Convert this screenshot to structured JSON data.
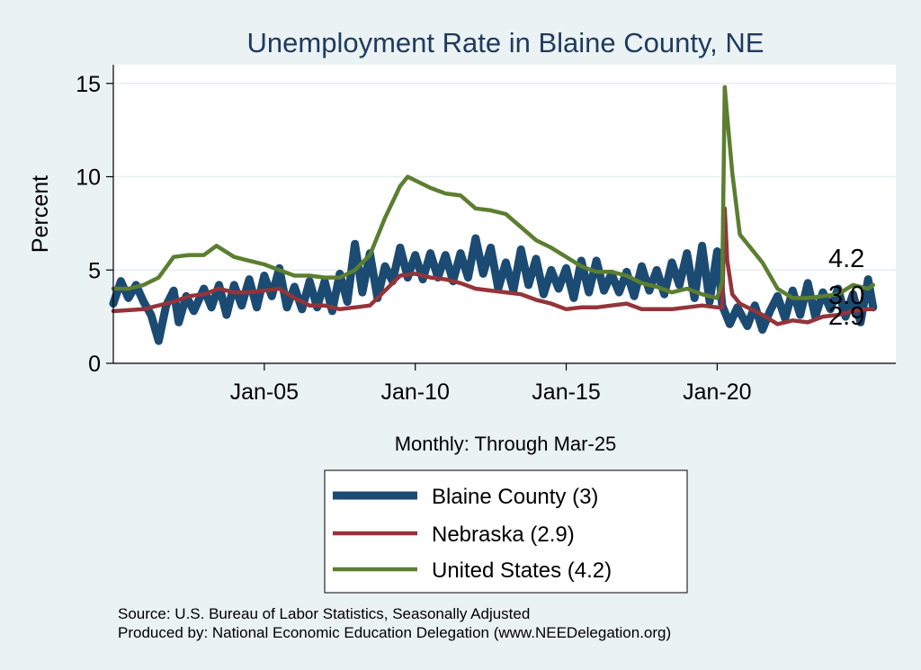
{
  "chart_data": {
    "type": "line",
    "title": "Unemployment Rate in Blaine  County, NE",
    "xlabel": "Monthly: Through Mar-25",
    "ylabel": "Percent",
    "ylim": [
      0,
      16
    ],
    "yticks": [
      0,
      5,
      10,
      15
    ],
    "xlim": [
      "2000-01",
      "2025-12"
    ],
    "xticks": [
      "Jan-05",
      "Jan-10",
      "Jan-15",
      "Jan-20"
    ],
    "xtick_dates": [
      "2005-01",
      "2010-01",
      "2015-01",
      "2020-01"
    ],
    "grid": true,
    "legend_position": "bottom",
    "end_labels": [
      "4.2",
      "3.0",
      "2.9"
    ],
    "series": [
      {
        "name": "Blaine  County (3)",
        "color": "#1b4a72",
        "points": [
          [
            "2000-01",
            3.2
          ],
          [
            "2000-04",
            4.4
          ],
          [
            "2000-07",
            3.5
          ],
          [
            "2000-10",
            4.2
          ],
          [
            "2001-01",
            3.3
          ],
          [
            "2001-04",
            2.6
          ],
          [
            "2001-07",
            1.2
          ],
          [
            "2001-10",
            3.1
          ],
          [
            "2002-01",
            3.9
          ],
          [
            "2002-03",
            2.2
          ],
          [
            "2002-06",
            3.6
          ],
          [
            "2002-09",
            2.8
          ],
          [
            "2003-01",
            4.0
          ],
          [
            "2003-04",
            3.0
          ],
          [
            "2003-07",
            4.2
          ],
          [
            "2003-10",
            2.6
          ],
          [
            "2004-01",
            4.2
          ],
          [
            "2004-04",
            3.1
          ],
          [
            "2004-07",
            4.5
          ],
          [
            "2004-10",
            3.0
          ],
          [
            "2005-01",
            4.7
          ],
          [
            "2005-04",
            3.6
          ],
          [
            "2005-07",
            5.1
          ],
          [
            "2005-10",
            3.0
          ],
          [
            "2006-01",
            4.1
          ],
          [
            "2006-04",
            2.9
          ],
          [
            "2006-07",
            4.4
          ],
          [
            "2006-10",
            3.0
          ],
          [
            "2007-01",
            4.4
          ],
          [
            "2007-04",
            2.8
          ],
          [
            "2007-07",
            4.8
          ],
          [
            "2007-10",
            3.3
          ],
          [
            "2008-01",
            6.4
          ],
          [
            "2008-04",
            3.8
          ],
          [
            "2008-07",
            5.9
          ],
          [
            "2008-10",
            3.5
          ],
          [
            "2009-01",
            5.2
          ],
          [
            "2009-04",
            4.4
          ],
          [
            "2009-07",
            6.2
          ],
          [
            "2009-10",
            4.6
          ],
          [
            "2010-01",
            5.8
          ],
          [
            "2010-04",
            4.5
          ],
          [
            "2010-07",
            5.9
          ],
          [
            "2010-10",
            4.6
          ],
          [
            "2011-01",
            5.8
          ],
          [
            "2011-04",
            4.4
          ],
          [
            "2011-07",
            5.9
          ],
          [
            "2011-10",
            4.6
          ],
          [
            "2012-01",
            6.7
          ],
          [
            "2012-04",
            4.8
          ],
          [
            "2012-07",
            6.2
          ],
          [
            "2012-10",
            4.0
          ],
          [
            "2013-01",
            5.4
          ],
          [
            "2013-04",
            3.9
          ],
          [
            "2013-07",
            6.1
          ],
          [
            "2013-10",
            4.2
          ],
          [
            "2014-01",
            5.6
          ],
          [
            "2014-04",
            3.7
          ],
          [
            "2014-07",
            5.0
          ],
          [
            "2014-10",
            4.0
          ],
          [
            "2015-01",
            5.1
          ],
          [
            "2015-04",
            3.5
          ],
          [
            "2015-07",
            5.5
          ],
          [
            "2015-10",
            3.8
          ],
          [
            "2016-01",
            5.5
          ],
          [
            "2016-04",
            3.9
          ],
          [
            "2016-07",
            4.8
          ],
          [
            "2016-10",
            3.8
          ],
          [
            "2017-01",
            4.9
          ],
          [
            "2017-04",
            3.6
          ],
          [
            "2017-07",
            5.2
          ],
          [
            "2017-10",
            3.9
          ],
          [
            "2018-01",
            5.0
          ],
          [
            "2018-04",
            3.7
          ],
          [
            "2018-07",
            5.4
          ],
          [
            "2018-10",
            4.2
          ],
          [
            "2019-01",
            5.9
          ],
          [
            "2019-04",
            3.5
          ],
          [
            "2019-07",
            6.3
          ],
          [
            "2019-10",
            3.3
          ],
          [
            "2020-01",
            6.0
          ],
          [
            "2020-03",
            3.1
          ],
          [
            "2020-06",
            2.1
          ],
          [
            "2020-09",
            3.0
          ],
          [
            "2021-01",
            2.0
          ],
          [
            "2021-04",
            3.1
          ],
          [
            "2021-07",
            1.8
          ],
          [
            "2021-10",
            2.8
          ],
          [
            "2022-01",
            3.6
          ],
          [
            "2022-04",
            2.4
          ],
          [
            "2022-07",
            3.9
          ],
          [
            "2022-10",
            2.6
          ],
          [
            "2023-01",
            4.3
          ],
          [
            "2023-04",
            2.5
          ],
          [
            "2023-07",
            3.8
          ],
          [
            "2023-10",
            2.9
          ],
          [
            "2024-01",
            4.0
          ],
          [
            "2024-04",
            2.5
          ],
          [
            "2024-07",
            3.7
          ],
          [
            "2024-10",
            2.2
          ],
          [
            "2025-01",
            4.5
          ],
          [
            "2025-03",
            3.0
          ]
        ]
      },
      {
        "name": "Nebraska (2.9)",
        "color": "#94343a",
        "points": [
          [
            "2000-01",
            2.8
          ],
          [
            "2001-01",
            2.9
          ],
          [
            "2002-01",
            3.3
          ],
          [
            "2002-07",
            3.6
          ],
          [
            "2003-01",
            3.7
          ],
          [
            "2003-07",
            4.0
          ],
          [
            "2004-01",
            3.8
          ],
          [
            "2004-07",
            3.8
          ],
          [
            "2005-01",
            3.9
          ],
          [
            "2005-07",
            4.0
          ],
          [
            "2006-01",
            3.5
          ],
          [
            "2006-07",
            3.1
          ],
          [
            "2007-01",
            3.1
          ],
          [
            "2007-07",
            2.9
          ],
          [
            "2008-01",
            3.0
          ],
          [
            "2008-07",
            3.1
          ],
          [
            "2009-01",
            3.9
          ],
          [
            "2009-07",
            4.7
          ],
          [
            "2010-01",
            4.8
          ],
          [
            "2010-07",
            4.6
          ],
          [
            "2011-01",
            4.5
          ],
          [
            "2011-07",
            4.3
          ],
          [
            "2012-01",
            4.0
          ],
          [
            "2012-07",
            3.9
          ],
          [
            "2013-01",
            3.8
          ],
          [
            "2013-07",
            3.7
          ],
          [
            "2014-01",
            3.4
          ],
          [
            "2014-07",
            3.2
          ],
          [
            "2015-01",
            2.9
          ],
          [
            "2015-07",
            3.0
          ],
          [
            "2016-01",
            3.0
          ],
          [
            "2016-07",
            3.1
          ],
          [
            "2017-01",
            3.2
          ],
          [
            "2017-07",
            2.9
          ],
          [
            "2018-01",
            2.9
          ],
          [
            "2018-07",
            2.9
          ],
          [
            "2019-01",
            3.0
          ],
          [
            "2019-07",
            3.1
          ],
          [
            "2020-01",
            3.0
          ],
          [
            "2020-03",
            3.0
          ],
          [
            "2020-04",
            8.3
          ],
          [
            "2020-05",
            5.5
          ],
          [
            "2020-07",
            3.7
          ],
          [
            "2020-10",
            3.2
          ],
          [
            "2021-01",
            3.0
          ],
          [
            "2021-07",
            2.6
          ],
          [
            "2022-01",
            2.1
          ],
          [
            "2022-07",
            2.3
          ],
          [
            "2023-01",
            2.2
          ],
          [
            "2023-07",
            2.5
          ],
          [
            "2024-01",
            2.6
          ],
          [
            "2024-07",
            2.8
          ],
          [
            "2025-01",
            2.9
          ],
          [
            "2025-03",
            2.9
          ]
        ]
      },
      {
        "name": "United States (4.2)",
        "color": "#5b7e30",
        "points": [
          [
            "2000-01",
            4.0
          ],
          [
            "2000-07",
            4.0
          ],
          [
            "2001-01",
            4.2
          ],
          [
            "2001-07",
            4.6
          ],
          [
            "2002-01",
            5.7
          ],
          [
            "2002-07",
            5.8
          ],
          [
            "2003-01",
            5.8
          ],
          [
            "2003-06",
            6.3
          ],
          [
            "2004-01",
            5.7
          ],
          [
            "2004-07",
            5.5
          ],
          [
            "2005-01",
            5.3
          ],
          [
            "2005-07",
            5.0
          ],
          [
            "2006-01",
            4.7
          ],
          [
            "2006-07",
            4.7
          ],
          [
            "2007-01",
            4.6
          ],
          [
            "2007-07",
            4.6
          ],
          [
            "2008-01",
            5.0
          ],
          [
            "2008-07",
            5.8
          ],
          [
            "2009-01",
            7.8
          ],
          [
            "2009-07",
            9.5
          ],
          [
            "2009-10",
            10.0
          ],
          [
            "2010-01",
            9.8
          ],
          [
            "2010-07",
            9.4
          ],
          [
            "2011-01",
            9.1
          ],
          [
            "2011-07",
            9.0
          ],
          [
            "2012-01",
            8.3
          ],
          [
            "2012-07",
            8.2
          ],
          [
            "2013-01",
            8.0
          ],
          [
            "2013-07",
            7.3
          ],
          [
            "2014-01",
            6.6
          ],
          [
            "2014-07",
            6.2
          ],
          [
            "2015-01",
            5.7
          ],
          [
            "2015-07",
            5.2
          ],
          [
            "2016-01",
            4.9
          ],
          [
            "2016-07",
            4.9
          ],
          [
            "2017-01",
            4.7
          ],
          [
            "2017-07",
            4.3
          ],
          [
            "2018-01",
            4.1
          ],
          [
            "2018-07",
            3.8
          ],
          [
            "2019-01",
            4.0
          ],
          [
            "2019-07",
            3.7
          ],
          [
            "2020-01",
            3.5
          ],
          [
            "2020-03",
            4.4
          ],
          [
            "2020-04",
            14.8
          ],
          [
            "2020-05",
            13.2
          ],
          [
            "2020-07",
            10.2
          ],
          [
            "2020-10",
            6.9
          ],
          [
            "2021-01",
            6.4
          ],
          [
            "2021-07",
            5.4
          ],
          [
            "2022-01",
            4.0
          ],
          [
            "2022-07",
            3.5
          ],
          [
            "2023-01",
            3.5
          ],
          [
            "2023-07",
            3.6
          ],
          [
            "2024-01",
            3.7
          ],
          [
            "2024-07",
            4.2
          ],
          [
            "2025-01",
            4.0
          ],
          [
            "2025-03",
            4.2
          ]
        ]
      }
    ]
  },
  "footer": {
    "source": "Source: U.S. Bureau of Labor Statistics, Seasonally Adjusted",
    "producer": "Produced by: National Economic Education Delegation (www.NEEDelegation.org)"
  }
}
